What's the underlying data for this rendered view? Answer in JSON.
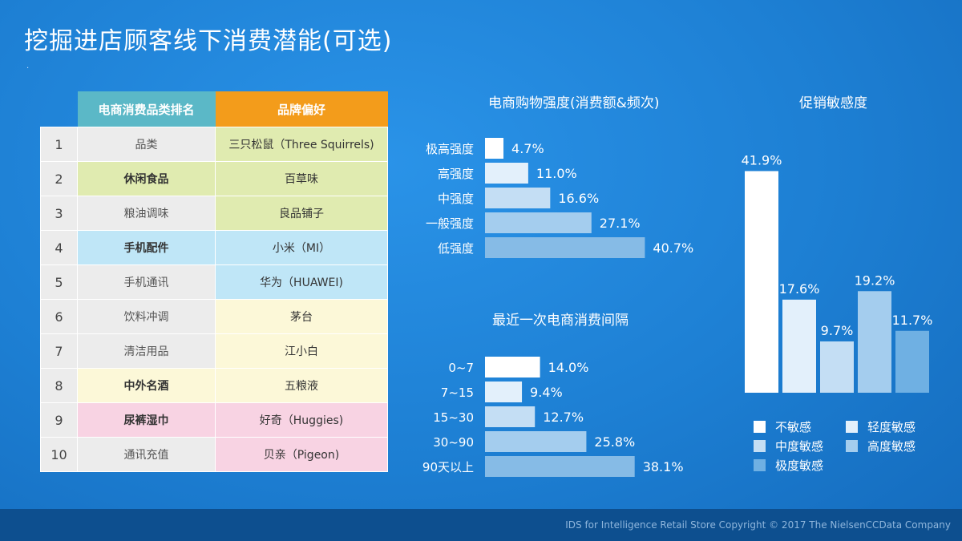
{
  "title": "挖掘进店顾客线下消费潜能(可选)",
  "table": {
    "header_category": "电商消费品类排名",
    "header_brand": "品牌偏好",
    "rows": [
      {
        "num": "1",
        "category": "品类",
        "brand": "三只松鼠（Three Squirrels)",
        "cat_bg": "#ececec",
        "brand_bg": "#e0ebb0",
        "cat_bold": false
      },
      {
        "num": "2",
        "category": "休闲食品",
        "brand": "百草味",
        "cat_bg": "#e0ebb0",
        "brand_bg": "#e0ebb0",
        "cat_bold": true
      },
      {
        "num": "3",
        "category": "粮油调味",
        "brand": "良品铺子",
        "cat_bg": "#ececec",
        "brand_bg": "#e0ebb0",
        "cat_bold": false
      },
      {
        "num": "4",
        "category": "手机配件",
        "brand": "小米（MI）",
        "cat_bg": "#bfe6f7",
        "brand_bg": "#bfe6f7",
        "cat_bold": true
      },
      {
        "num": "5",
        "category": "手机通讯",
        "brand": "华为（HUAWEI)",
        "cat_bg": "#ececec",
        "brand_bg": "#bfe6f7",
        "cat_bold": false
      },
      {
        "num": "6",
        "category": "饮料冲调",
        "brand": "茅台",
        "cat_bg": "#ececec",
        "brand_bg": "#fcf8d8",
        "cat_bold": false
      },
      {
        "num": "7",
        "category": "清洁用品",
        "brand": "江小白",
        "cat_bg": "#ececec",
        "brand_bg": "#fcf8d8",
        "cat_bold": false
      },
      {
        "num": "8",
        "category": "中外名酒",
        "brand": "五粮液",
        "cat_bg": "#fcf8d8",
        "brand_bg": "#fcf8d8",
        "cat_bold": true
      },
      {
        "num": "9",
        "category": "尿裤湿巾",
        "brand": "好奇（Huggies)",
        "cat_bg": "#f8d3e3",
        "brand_bg": "#f8d3e3",
        "cat_bold": true
      },
      {
        "num": "10",
        "category": "通讯充值",
        "brand": "贝亲（Pigeon)",
        "cat_bg": "#ececec",
        "brand_bg": "#f8d3e3",
        "cat_bold": false
      }
    ]
  },
  "chart_data": [
    {
      "type": "bar",
      "orientation": "horizontal",
      "title": "电商购物强度(消费额&频次)",
      "categories": [
        "极高强度",
        "高强度",
        "中强度",
        "一般强度",
        "低强度"
      ],
      "values": [
        4.7,
        11.0,
        16.6,
        27.1,
        40.7
      ],
      "labels": [
        "4.7%",
        "11.0%",
        "16.6%",
        "27.1%",
        "40.7%"
      ],
      "colors": [
        "#ffffff",
        "#e3f0fb",
        "#c4def4",
        "#a4cdee",
        "#86bbe6"
      ]
    },
    {
      "type": "bar",
      "orientation": "horizontal",
      "title": "最近一次电商消费间隔",
      "categories": [
        "0~7",
        "7~15",
        "15~30",
        "30~90",
        "90天以上"
      ],
      "values": [
        14.0,
        9.4,
        12.7,
        25.8,
        38.1
      ],
      "labels": [
        "14.0%",
        "9.4%",
        "12.7%",
        "25.8%",
        "38.1%"
      ],
      "colors": [
        "#ffffff",
        "#e3f0fb",
        "#c4def4",
        "#a4cdee",
        "#86bbe6"
      ]
    },
    {
      "type": "bar",
      "orientation": "vertical",
      "title": "促销敏感度",
      "categories": [
        "不敏感",
        "轻度敏感",
        "中度敏感",
        "高度敏感",
        "极度敏感"
      ],
      "values": [
        41.9,
        17.6,
        9.7,
        19.2,
        11.7
      ],
      "labels": [
        "41.9%",
        "17.6%",
        "9.7%",
        "19.2%",
        "11.7%"
      ],
      "colors": [
        "#ffffff",
        "#e3f0fb",
        "#c4def4",
        "#a4cdee",
        "#6fb0e3"
      ],
      "legend": "bottom"
    }
  ],
  "footer": "IDS for Intelligence Retail Store  Copyright © 2017 The NielsenCCData Company"
}
